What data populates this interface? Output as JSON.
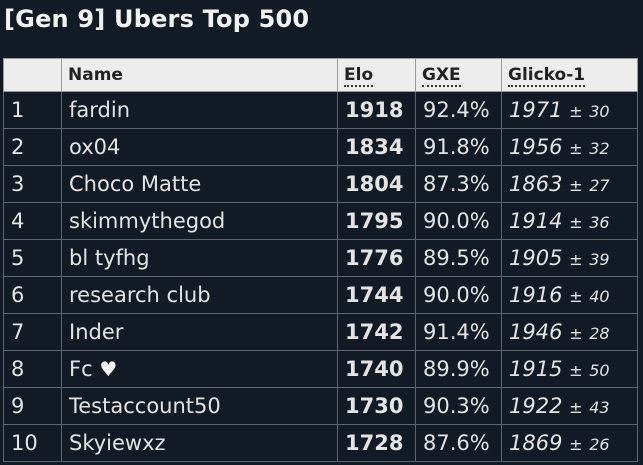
{
  "page": {
    "title": "[Gen 9] Ubers Top 500"
  },
  "table": {
    "headers": {
      "rank": "",
      "name": "Name",
      "elo": "Elo",
      "gxe": "GXE",
      "glicko": "Glicko-1"
    },
    "rows": [
      {
        "rank": "1",
        "name": "fardin",
        "elo": "1918",
        "gxe": "92.4%",
        "glicko": "1971",
        "pm": "±",
        "dev": "30",
        "icon": ""
      },
      {
        "rank": "2",
        "name": "ox04",
        "elo": "1834",
        "gxe": "91.8%",
        "glicko": "1956",
        "pm": "±",
        "dev": "32",
        "icon": ""
      },
      {
        "rank": "3",
        "name": "Choco Matte",
        "elo": "1804",
        "gxe": "87.3%",
        "glicko": "1863",
        "pm": "±",
        "dev": "27",
        "icon": ""
      },
      {
        "rank": "4",
        "name": "skimmythegod",
        "elo": "1795",
        "gxe": "90.0%",
        "glicko": "1914",
        "pm": "±",
        "dev": "36",
        "icon": ""
      },
      {
        "rank": "5",
        "name": "bl tyfhg",
        "elo": "1776",
        "gxe": "89.5%",
        "glicko": "1905",
        "pm": "±",
        "dev": "39",
        "icon": ""
      },
      {
        "rank": "6",
        "name": "research club",
        "elo": "1744",
        "gxe": "90.0%",
        "glicko": "1916",
        "pm": "±",
        "dev": "40",
        "icon": ""
      },
      {
        "rank": "7",
        "name": "Inder",
        "elo": "1742",
        "gxe": "91.4%",
        "glicko": "1946",
        "pm": "±",
        "dev": "28",
        "icon": ""
      },
      {
        "rank": "8",
        "name": "Fc",
        "elo": "1740",
        "gxe": "89.9%",
        "glicko": "1915",
        "pm": "±",
        "dev": "50",
        "icon": "heart-icon"
      },
      {
        "rank": "9",
        "name": "Testaccount50",
        "elo": "1730",
        "gxe": "90.3%",
        "glicko": "1922",
        "pm": "±",
        "dev": "43",
        "icon": ""
      },
      {
        "rank": "10",
        "name": "Skyiewxz",
        "elo": "1728",
        "gxe": "87.6%",
        "glicko": "1869",
        "pm": "±",
        "dev": "26",
        "icon": ""
      }
    ]
  },
  "colors": {
    "background": "#121a26",
    "header_background": "#ededed",
    "text": "#e4e4e4"
  }
}
